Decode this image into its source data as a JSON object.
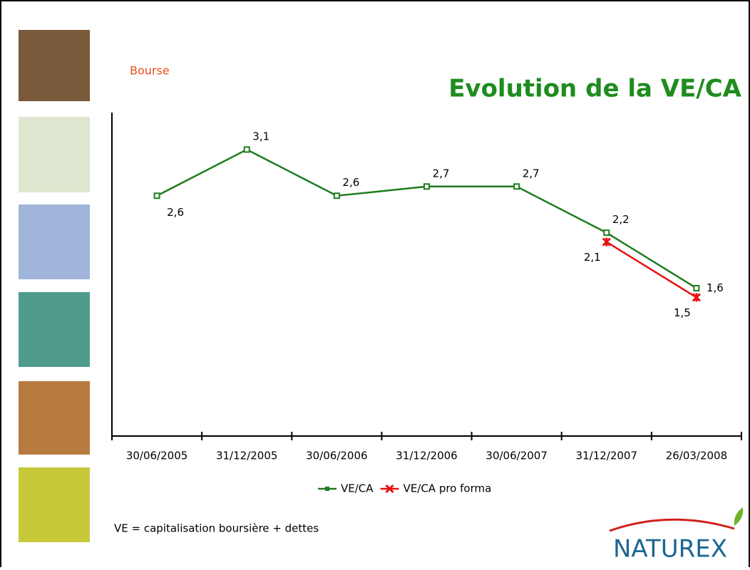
{
  "header": {
    "section": "Bourse"
  },
  "footnote": "VE = capitalisation boursière + dettes",
  "logo": "NATUREX",
  "chart_data": {
    "type": "line",
    "title": "Evolution de la VE/CA",
    "categories": [
      "30/06/2005",
      "31/12/2005",
      "30/06/2006",
      "31/12/2006",
      "30/06/2007",
      "31/12/2007",
      "26/03/2008"
    ],
    "series": [
      {
        "name": "VE/CA",
        "color": "#1e7d1e",
        "values": [
          2.6,
          3.1,
          2.6,
          2.7,
          2.7,
          2.2,
          1.6
        ],
        "value_labels": [
          "2,6",
          "3,1",
          "2,6",
          "2,7",
          "2,7",
          "2,2",
          "1,6"
        ]
      },
      {
        "name": "VE/CA pro forma",
        "color": "#e81010",
        "values": [
          null,
          null,
          null,
          null,
          null,
          2.1,
          1.5
        ],
        "value_labels": [
          null,
          null,
          null,
          null,
          null,
          "2,1",
          "1,5"
        ]
      }
    ],
    "ylim": [
      0,
      3.5
    ],
    "legend": "bottom"
  }
}
